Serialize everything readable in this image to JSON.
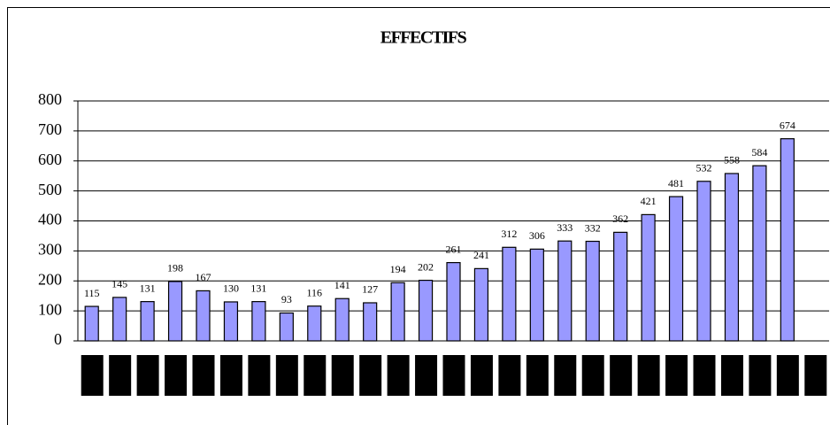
{
  "chart_data": {
    "type": "bar",
    "title": "EFFECTIFS",
    "categories": [
      null,
      null,
      null,
      null,
      null,
      null,
      null,
      null,
      null,
      null,
      null,
      null,
      null,
      null,
      null,
      null,
      null,
      null,
      null,
      null,
      null,
      null,
      null,
      null,
      null,
      null,
      null
    ],
    "values": [
      115,
      145,
      131,
      198,
      167,
      130,
      131,
      93,
      116,
      141,
      127,
      194,
      202,
      261,
      241,
      312,
      306,
      333,
      332,
      362,
      421,
      481,
      532,
      558,
      584,
      674,
      null
    ],
    "color": "#9999ff",
    "ylim": [
      0,
      800
    ],
    "yticks": [
      0,
      100,
      200,
      300,
      400,
      500,
      600,
      700,
      800
    ],
    "grid": true
  }
}
